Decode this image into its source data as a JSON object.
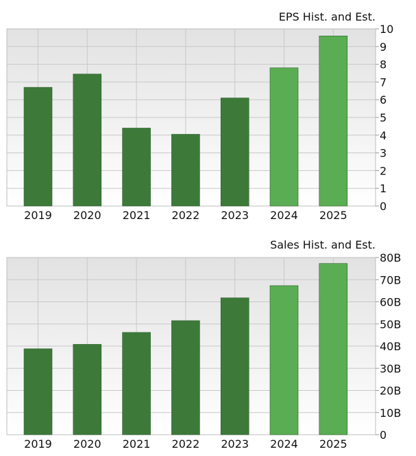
{
  "colors": {
    "historical_bar": "#3d7a3a",
    "estimate_bar": "#5aad53",
    "grid": "#c8c8c8",
    "plot_top": "#e3e3e3",
    "plot_bottom": "#ffffff"
  },
  "chart_data": [
    {
      "type": "bar",
      "title": "EPS Hist. and Est.",
      "categories": [
        "2019",
        "2020",
        "2021",
        "2022",
        "2023",
        "2024",
        "2025"
      ],
      "values": [
        6.7,
        7.45,
        4.4,
        4.05,
        6.1,
        7.8,
        9.6
      ],
      "estimate": [
        false,
        false,
        false,
        false,
        false,
        true,
        true
      ],
      "ylim": [
        0,
        10
      ],
      "yticks": [
        0,
        1,
        2,
        3,
        4,
        5,
        6,
        7,
        8,
        9,
        10
      ],
      "ytick_labels": [
        "0",
        "1",
        "2",
        "3",
        "4",
        "5",
        "6",
        "7",
        "8",
        "9",
        "10"
      ],
      "grid": true,
      "y_axis_side": "right",
      "xlabel": "",
      "ylabel": ""
    },
    {
      "type": "bar",
      "title": "Sales Hist. and Est.",
      "categories": [
        "2019",
        "2020",
        "2021",
        "2022",
        "2023",
        "2024",
        "2025"
      ],
      "values": [
        38.8,
        40.8,
        46.2,
        51.5,
        61.8,
        67.3,
        77.3
      ],
      "estimate": [
        false,
        false,
        false,
        false,
        false,
        true,
        true
      ],
      "ylim": [
        0,
        80
      ],
      "yticks": [
        0,
        10,
        20,
        30,
        40,
        50,
        60,
        70,
        80
      ],
      "ytick_labels": [
        "0",
        "10B",
        "20B",
        "30B",
        "40B",
        "50B",
        "60B",
        "70B",
        "80B"
      ],
      "grid": true,
      "y_axis_side": "right",
      "xlabel": "",
      "ylabel": ""
    }
  ]
}
